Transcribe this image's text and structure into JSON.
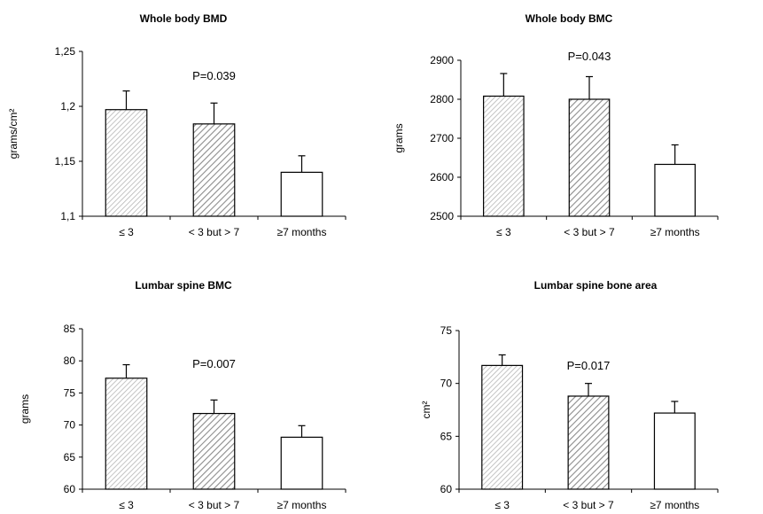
{
  "chart_data": [
    {
      "type": "bar",
      "title": "Whole body BMD",
      "ylabel": "grams/cm²",
      "categories": [
        "≤ 3",
        "< 3 but > 7",
        "≥7 months"
      ],
      "values": [
        1.197,
        1.184,
        1.14
      ],
      "errors": [
        0.017,
        0.019,
        0.015
      ],
      "ylim": [
        1.1,
        1.25
      ],
      "yticks": [
        1.1,
        1.15,
        1.2,
        1.25
      ],
      "ytick_labels": [
        "1,1",
        "1,15",
        "1,2",
        "1,25"
      ],
      "annotation": "P=0.039",
      "bar_fills": [
        "light-hatch",
        "dark-hatch",
        "white"
      ],
      "grid": false,
      "legend": "none"
    },
    {
      "type": "bar",
      "title": "Whole body BMC",
      "ylabel": "grams",
      "categories": [
        "≤ 3",
        "< 3 but > 7",
        "≥7 months"
      ],
      "values": [
        2808,
        2800,
        2633
      ],
      "errors": [
        58,
        58,
        50
      ],
      "ylim": [
        2500,
        2900
      ],
      "yticks": [
        2500,
        2600,
        2700,
        2800,
        2900
      ],
      "ytick_labels": [
        "2500",
        "2600",
        "2700",
        "2800",
        "2900"
      ],
      "annotation": "P=0.043",
      "bar_fills": [
        "light-hatch",
        "dark-hatch",
        "white"
      ],
      "grid": false,
      "legend": "none"
    },
    {
      "type": "bar",
      "title": "Lumbar spine BMC",
      "ylabel": "grams",
      "categories": [
        "≤ 3",
        "< 3 but > 7",
        "≥7 months"
      ],
      "values": [
        77.3,
        71.8,
        68.1
      ],
      "errors": [
        2.1,
        2.1,
        1.8
      ],
      "ylim": [
        60,
        85
      ],
      "yticks": [
        60,
        65,
        70,
        75,
        80,
        85
      ],
      "ytick_labels": [
        "60",
        "65",
        "70",
        "75",
        "80",
        "85"
      ],
      "annotation": "P=0.007",
      "bar_fills": [
        "light-hatch",
        "dark-hatch",
        "white"
      ],
      "grid": false,
      "legend": "none"
    },
    {
      "type": "bar",
      "title": "Lumbar spine bone area",
      "ylabel": "cm²",
      "categories": [
        "≤ 3",
        "< 3 but > 7",
        "≥7 months"
      ],
      "values": [
        71.7,
        68.8,
        67.2
      ],
      "errors": [
        1.0,
        1.2,
        1.1
      ],
      "ylim": [
        60,
        75
      ],
      "yticks": [
        60,
        65,
        70,
        75
      ],
      "ytick_labels": [
        "60",
        "65",
        "70",
        "75"
      ],
      "annotation": "P=0.017",
      "bar_fills": [
        "light-hatch",
        "dark-hatch",
        "white"
      ],
      "grid": false,
      "legend": "none"
    }
  ],
  "colors": {
    "axis": "#000000",
    "light_hatch_stroke": "#b5b5b5",
    "dark_hatch_stroke": "#8c8c8c",
    "bar_background": "#ffffff"
  }
}
